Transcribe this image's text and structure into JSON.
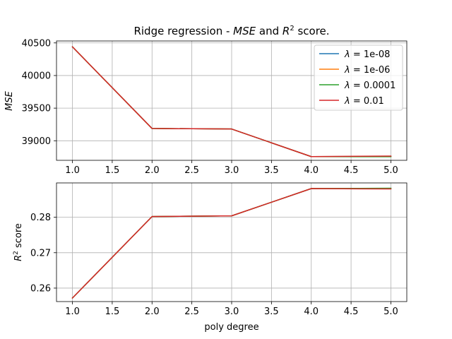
{
  "chart_data": [
    {
      "type": "line",
      "title_parts": [
        "Ridge regression - ",
        "MSE",
        " and ",
        "R",
        "2",
        " score."
      ],
      "xlabel": "",
      "ylabel": "MSE",
      "x": [
        1.0,
        2.0,
        3.0,
        4.0,
        5.0
      ],
      "xticks": [
        "1.0",
        "1.5",
        "2.0",
        "2.5",
        "3.0",
        "3.5",
        "4.0",
        "4.5",
        "5.0"
      ],
      "yticks": [
        "39000",
        "39500",
        "40000",
        "40500"
      ],
      "xlim": [
        0.8,
        5.2
      ],
      "ylim": [
        38700,
        40530
      ],
      "grid": true,
      "legend": "top-right",
      "series": [
        {
          "name": "1e-08",
          "color": "#1f77b4",
          "values": [
            40440,
            39188,
            39180,
            38757,
            38760
          ]
        },
        {
          "name": "1e-06",
          "color": "#ff7f0e",
          "values": [
            40440,
            39188,
            39180,
            38757,
            38760
          ]
        },
        {
          "name": "0.0001",
          "color": "#2ca02c",
          "values": [
            40440,
            39188,
            39180,
            38757,
            38755
          ]
        },
        {
          "name": "0.01",
          "color": "#d62728",
          "values": [
            40440,
            39188,
            39180,
            38757,
            38765
          ]
        }
      ]
    },
    {
      "type": "line",
      "xlabel": "poly degree",
      "ylabel_parts": [
        "R",
        "2",
        " score"
      ],
      "x": [
        1.0,
        2.0,
        3.0,
        4.0,
        5.0
      ],
      "xticks": [
        "1.0",
        "1.5",
        "2.0",
        "2.5",
        "3.0",
        "3.5",
        "4.0",
        "4.5",
        "5.0"
      ],
      "yticks": [
        "0.26",
        "0.27",
        "0.28"
      ],
      "xlim": [
        0.8,
        5.2
      ],
      "ylim": [
        0.2562,
        0.2897
      ],
      "grid": true,
      "series": [
        {
          "name": "1e-08",
          "color": "#1f77b4",
          "values": [
            0.2572,
            0.2802,
            0.2804,
            0.2881,
            0.2881
          ]
        },
        {
          "name": "1e-06",
          "color": "#ff7f0e",
          "values": [
            0.2572,
            0.2802,
            0.2804,
            0.2881,
            0.2881
          ]
        },
        {
          "name": "0.0001",
          "color": "#2ca02c",
          "values": [
            0.2572,
            0.2802,
            0.2804,
            0.2881,
            0.2882
          ]
        },
        {
          "name": "0.01",
          "color": "#d62728",
          "values": [
            0.2572,
            0.2802,
            0.2804,
            0.2881,
            0.288
          ]
        }
      ]
    }
  ],
  "legend_prefix": "λ = "
}
